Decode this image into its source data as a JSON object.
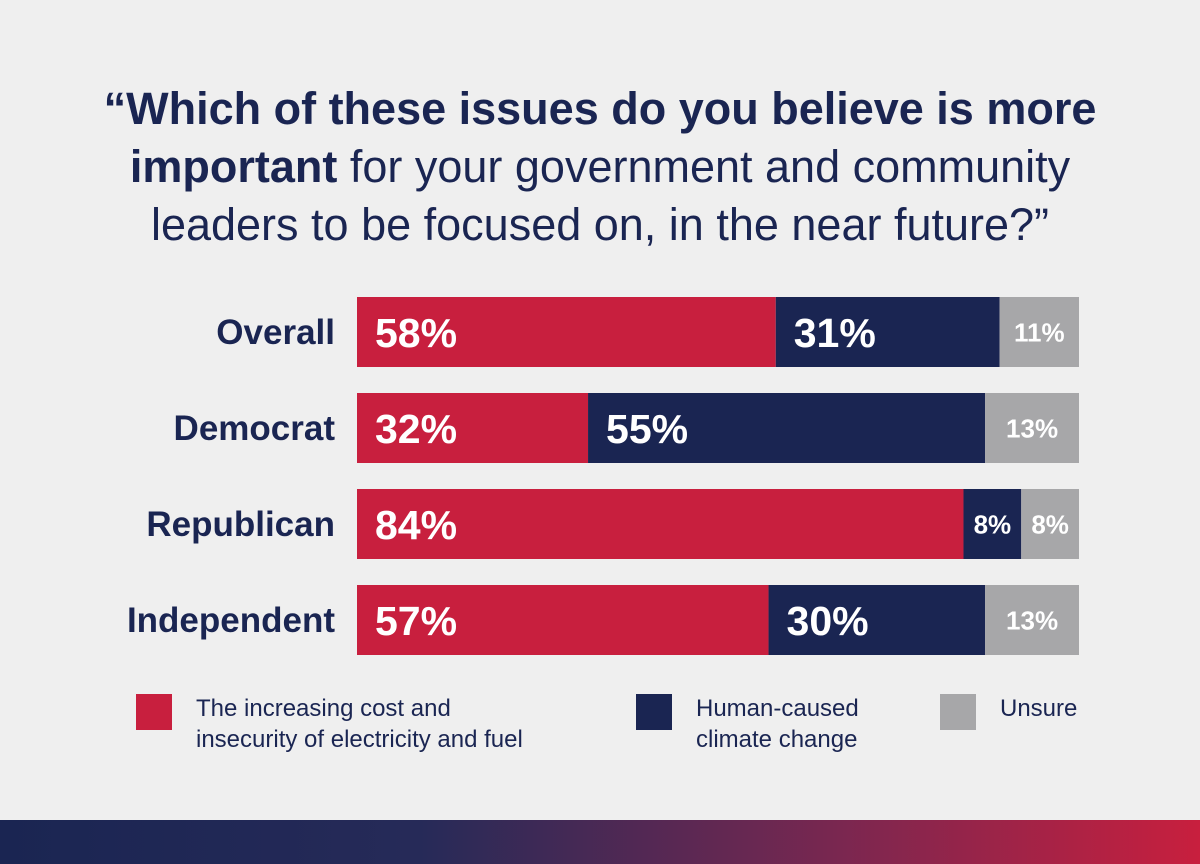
{
  "title": {
    "bold_part": "“Which of these issues do you believe is more important",
    "regular_part": " for your government and community leaders to be focused on, in the near future?”"
  },
  "colors": {
    "cost": "#c81f3e",
    "climate": "#1a2552",
    "unsure": "#a7a7a9",
    "background": "#efefef",
    "text": "#1a2552"
  },
  "chart_data": {
    "type": "bar",
    "orientation": "horizontal",
    "stacked": true,
    "categories": [
      "Overall",
      "Democrat",
      "Republican",
      "Independent"
    ],
    "series": [
      {
        "name": "The increasing cost and insecurity of electricity and fuel",
        "values": [
          58,
          32,
          84,
          57
        ],
        "labels": [
          "58%",
          "32%",
          "84%",
          "57%"
        ]
      },
      {
        "name": "Human-caused climate change",
        "values": [
          31,
          55,
          8,
          30
        ],
        "labels": [
          "31%",
          "55%",
          "8%",
          "30%"
        ]
      },
      {
        "name": "Unsure",
        "values": [
          11,
          13,
          8,
          13
        ],
        "labels": [
          "11%",
          "13%",
          "8%",
          "13%"
        ]
      }
    ],
    "xlim": [
      0,
      100
    ],
    "grid": false,
    "legend_position": "bottom"
  },
  "legend": [
    {
      "label": "The increasing cost and\ninsecurity of electricity and fuel"
    },
    {
      "label": "Human-caused\nclimate change"
    },
    {
      "label": "Unsure"
    }
  ]
}
